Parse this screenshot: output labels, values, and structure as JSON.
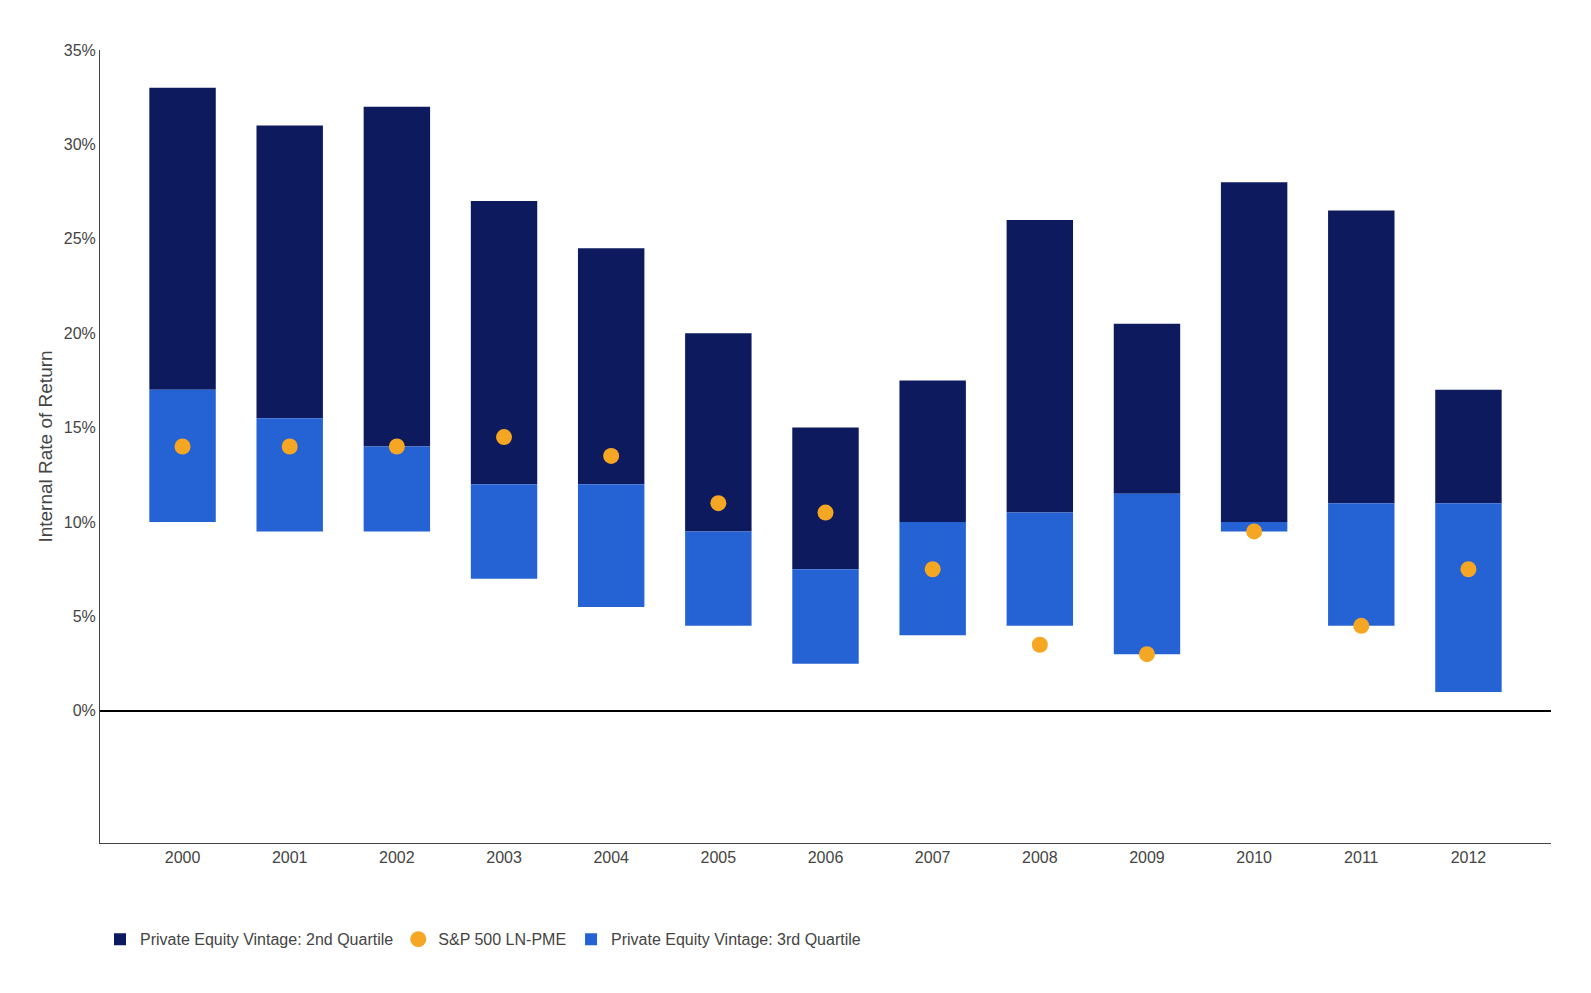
{
  "chart_data": {
    "type": "bar",
    "ylabel": "Internal Rate of Return",
    "categories": [
      "2000",
      "2001",
      "2002",
      "2003",
      "2004",
      "2005",
      "2006",
      "2007",
      "2008",
      "2009",
      "2010",
      "2011",
      "2012"
    ],
    "series": [
      {
        "name": "Private Equity Vintage: 2nd Quartile",
        "type": "bar",
        "color": "#0d1b5e",
        "base": [
          17.0,
          15.5,
          14.0,
          12.0,
          12.0,
          9.5,
          7.5,
          10.0,
          10.5,
          11.5,
          10.0,
          11.0,
          11.0
        ],
        "values": [
          16.0,
          15.5,
          18.0,
          15.0,
          12.5,
          10.5,
          7.5,
          7.5,
          15.5,
          9.0,
          18.0,
          15.5,
          6.0
        ]
      },
      {
        "name": "S&P 500 LN-PME",
        "type": "scatter",
        "marker": "circle",
        "color": "#f5a623",
        "values": [
          14.0,
          14.0,
          14.0,
          14.5,
          13.5,
          11.0,
          10.5,
          7.5,
          3.5,
          3.0,
          9.5,
          4.5,
          7.5
        ]
      },
      {
        "name": "Private Equity Vintage: 3rd Quartile",
        "type": "bar",
        "color": "#2563d4",
        "base": [
          10.0,
          9.5,
          9.5,
          7.0,
          5.5,
          4.5,
          2.5,
          4.0,
          4.5,
          3.0,
          9.5,
          4.5,
          1.0
        ],
        "values": [
          7.0,
          6.0,
          4.5,
          5.0,
          6.5,
          5.0,
          5.0,
          6.0,
          6.0,
          8.5,
          0.5,
          6.5,
          10.0
        ]
      }
    ],
    "ylim": [
      -7,
      35
    ],
    "yticks": [
      {
        "value": 0,
        "label": "0%"
      },
      {
        "value": 5,
        "label": "5%"
      },
      {
        "value": 10,
        "label": "10%"
      },
      {
        "value": 15,
        "label": "15%"
      },
      {
        "value": 20,
        "label": "20%"
      },
      {
        "value": 25,
        "label": "25%"
      },
      {
        "value": 30,
        "label": "30%"
      },
      {
        "value": 35,
        "label": "35%"
      }
    ],
    "grid": false,
    "legend": "bottom"
  }
}
